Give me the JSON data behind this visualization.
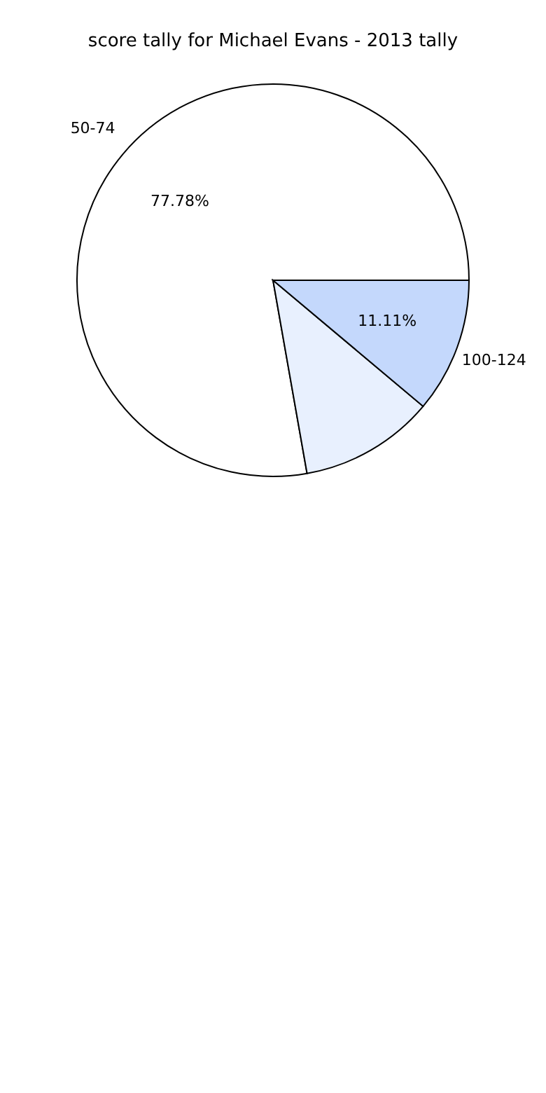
{
  "chart_data": {
    "type": "pie",
    "title": "score tally for Michael Evans - 2013 tally",
    "categories": [
      "50-74",
      null,
      "100-124"
    ],
    "values": [
      77.78,
      11.11,
      11.11
    ],
    "value_labels": [
      "77.78%",
      null,
      "11.11%"
    ],
    "colors": [
      "#ffffff",
      "#e8f0fe",
      "#c4d8fc"
    ],
    "legend": false
  }
}
